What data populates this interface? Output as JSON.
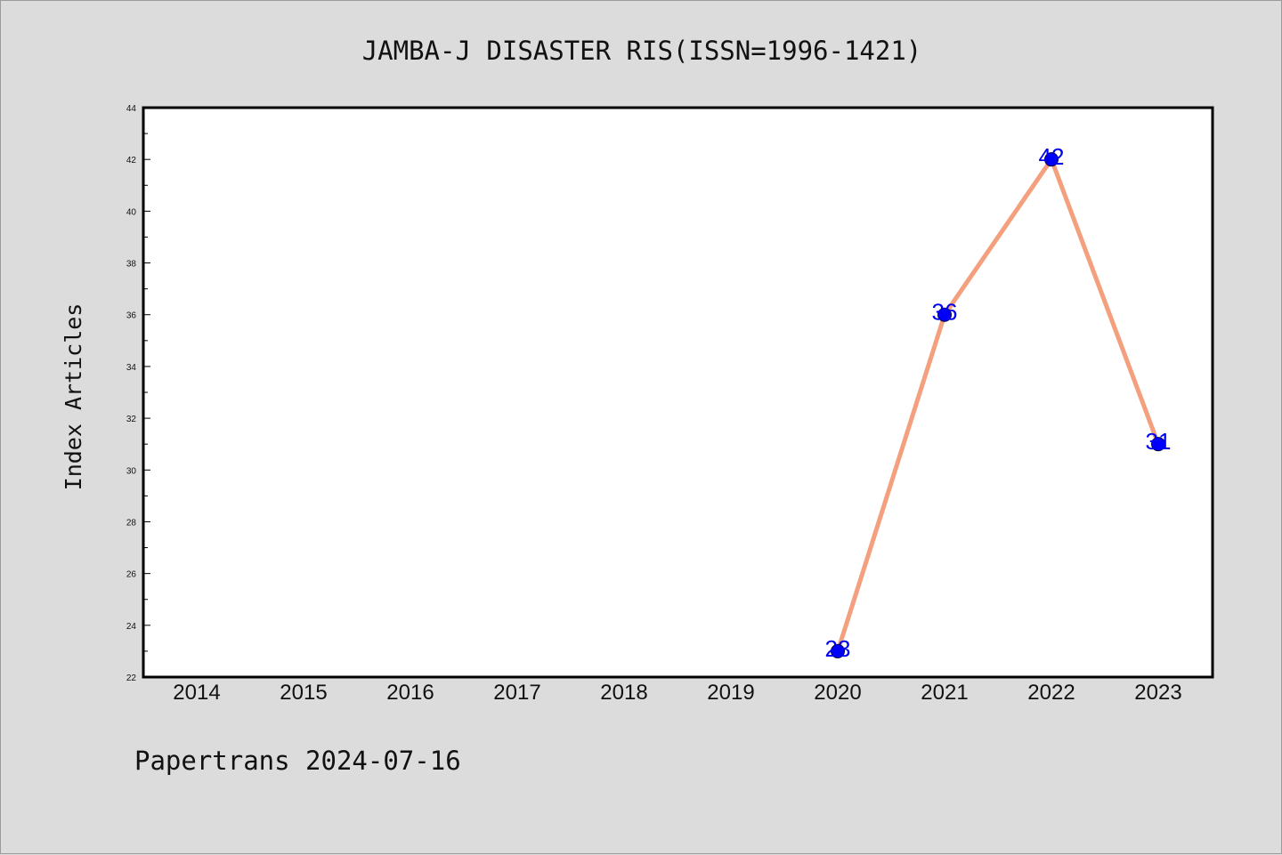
{
  "chart_data": {
    "type": "line",
    "title": "JAMBA-J DISASTER RIS(ISSN=1996-1421)",
    "xlabel": "",
    "ylabel": "Index Articles",
    "footer": "Papertrans 2024-07-16",
    "categories": [
      "2014",
      "2015",
      "2016",
      "2017",
      "2018",
      "2019",
      "2020",
      "2021",
      "2022",
      "2023"
    ],
    "y_ticks": [
      "22",
      "24",
      "26",
      "28",
      "30",
      "32",
      "34",
      "36",
      "38",
      "40",
      "42",
      "44"
    ],
    "ylim": [
      22,
      44
    ],
    "grid": false,
    "series": [
      {
        "x": [
          "2020",
          "2021",
          "2022",
          "2023"
        ],
        "values": [
          23,
          36,
          42,
          31
        ],
        "labels": [
          "23",
          "36",
          "42",
          "31"
        ],
        "line_color": "#f4a07e",
        "marker_color": "#0000ff",
        "label_color": "#0000ee"
      }
    ]
  }
}
